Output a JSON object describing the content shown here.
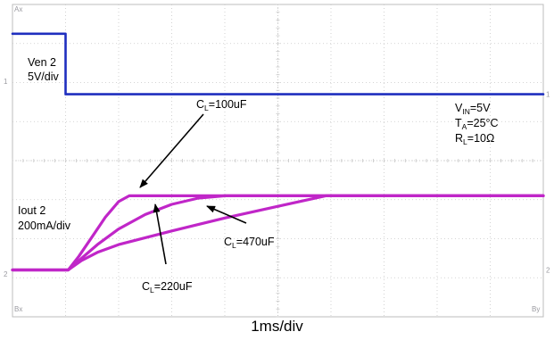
{
  "chart_data": {
    "type": "line",
    "xlabel": "1ms/div",
    "x_unit_ms_per_div": 1,
    "x_divisions": 10,
    "y_divisions": 8,
    "grid": true,
    "colors": {
      "ven": "#1f2fbf",
      "iout": "#c026c8",
      "grid": "#c8c8c8",
      "frame": "#bdbdbd"
    },
    "channels": [
      {
        "name": "Ven 2",
        "scale": "5V/div",
        "marker": "1"
      },
      {
        "name": "Iout 2",
        "scale": "200mA/div",
        "marker": "2"
      }
    ],
    "conditions": {
      "vin": "V_IN=5V",
      "ta": "T_A=25°C",
      "rl": "R_L=10Ω"
    },
    "corner_labels": {
      "top_left": "Ax",
      "bottom_left": "Bx",
      "bottom_right": "By"
    },
    "series": [
      {
        "name": "Ven 2",
        "color": "#1f2fbf",
        "x": [
          0,
          1.0,
          1.0,
          10
        ],
        "y": [
          1.55,
          1.55,
          0.0,
          0.0
        ]
      },
      {
        "name": "C_L=100uF",
        "color": "#c026c8",
        "x": [
          0,
          1.05,
          1.25,
          1.5,
          1.75,
          2.0,
          2.2,
          10
        ],
        "y": [
          0,
          0,
          0.35,
          0.85,
          1.35,
          1.75,
          1.9,
          1.9
        ]
      },
      {
        "name": "C_L=220uF",
        "color": "#c026c8",
        "x": [
          0,
          1.05,
          1.3,
          1.6,
          2.0,
          2.5,
          3.0,
          3.5,
          4.0,
          10
        ],
        "y": [
          0,
          0,
          0.3,
          0.65,
          1.05,
          1.42,
          1.68,
          1.84,
          1.9,
          1.9
        ]
      },
      {
        "name": "C_L=470uF",
        "color": "#c026c8",
        "x": [
          0,
          1.05,
          1.3,
          1.6,
          2.0,
          3.0,
          4.0,
          5.0,
          5.9,
          10
        ],
        "y": [
          0,
          0,
          0.24,
          0.45,
          0.65,
          1.0,
          1.33,
          1.63,
          1.9,
          1.9
        ]
      }
    ],
    "annotations": [
      {
        "id": "cl100",
        "text_main": "C",
        "text_sub": "L",
        "text_rest": "=100uF"
      },
      {
        "id": "cl220",
        "text_main": "C",
        "text_sub": "L",
        "text_rest": "=220uF"
      },
      {
        "id": "cl470",
        "text_main": "C",
        "text_sub": "L",
        "text_rest": "=470uF"
      },
      {
        "id": "vin",
        "text_main": "V",
        "text_sub": "IN",
        "text_rest": "=5V"
      },
      {
        "id": "ta",
        "text_main": "T",
        "text_sub": "A",
        "text_rest": "=25°C"
      },
      {
        "id": "rl",
        "text_main": "R",
        "text_sub": "L",
        "text_rest": "=10Ω"
      }
    ]
  }
}
